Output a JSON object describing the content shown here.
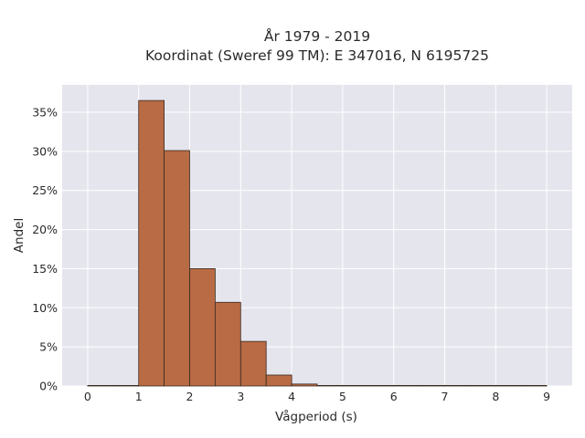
{
  "chart_data": {
    "type": "bar",
    "title_lines": [
      "År 1979 - 2019",
      "Koordinat (Sweref 99 TM): E 347016, N 6195725"
    ],
    "xlabel": "Vågperiod (s)",
    "ylabel": "Andel",
    "bin_width": 0.5,
    "bins": [
      {
        "start": 0.0,
        "value": 0.0003
      },
      {
        "start": 0.5,
        "value": 0.0
      },
      {
        "start": 1.0,
        "value": 0.365
      },
      {
        "start": 1.5,
        "value": 0.301
      },
      {
        "start": 2.0,
        "value": 0.15
      },
      {
        "start": 2.5,
        "value": 0.107
      },
      {
        "start": 3.0,
        "value": 0.057
      },
      {
        "start": 3.5,
        "value": 0.014
      },
      {
        "start": 4.0,
        "value": 0.0025
      },
      {
        "start": 4.5,
        "value": 0.0006
      },
      {
        "start": 5.0,
        "value": 0.0
      },
      {
        "start": 5.5,
        "value": 0.0
      },
      {
        "start": 6.0,
        "value": 0.0
      },
      {
        "start": 6.5,
        "value": 0.0
      },
      {
        "start": 7.0,
        "value": 0.0002
      },
      {
        "start": 7.5,
        "value": 0.0002
      },
      {
        "start": 8.0,
        "value": 0.0003
      },
      {
        "start": 8.5,
        "value": 0.0
      }
    ],
    "xlim": [
      -0.5,
      9.5
    ],
    "ylim": [
      0,
      0.385
    ],
    "xticks": [
      0,
      1,
      2,
      3,
      4,
      5,
      6,
      7,
      8,
      9
    ],
    "xtick_labels": [
      "0",
      "1",
      "2",
      "3",
      "4",
      "5",
      "6",
      "7",
      "8",
      "9"
    ],
    "yticks": [
      0,
      0.05,
      0.1,
      0.15,
      0.2,
      0.25,
      0.3,
      0.35
    ],
    "ytick_labels": [
      "0%",
      "5%",
      "10%",
      "15%",
      "20%",
      "25%",
      "30%",
      "35%"
    ],
    "grid": true,
    "colors": {
      "bar_fill": "#b86b44",
      "bar_edge": "#3a2a20",
      "plot_bg": "#e5e5ee",
      "grid": "#ffffff"
    }
  }
}
